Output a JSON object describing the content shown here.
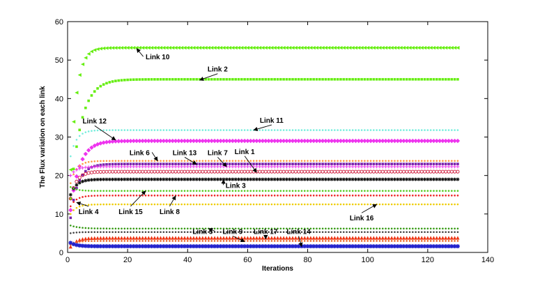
{
  "chart_data": {
    "type": "scatter",
    "xlabel": "Iterations",
    "ylabel": "The Flux variation on each link",
    "xlim": [
      0,
      140
    ],
    "ylim": [
      0,
      60
    ],
    "x_ticks": [
      0,
      20,
      40,
      60,
      80,
      100,
      120,
      140
    ],
    "y_ticks": [
      0,
      10,
      20,
      30,
      40,
      50,
      60
    ],
    "x_range": [
      1,
      130
    ],
    "grid": false,
    "series": [
      {
        "name": "Link 10",
        "start": 21.5,
        "final": 53.2,
        "tau": 2.0,
        "marker": "triangle-left",
        "color": "#66ee11"
      },
      {
        "name": "Link 2",
        "start": 14.0,
        "final": 45.0,
        "tau": 3.5,
        "marker": "square",
        "color": "#66ee11"
      },
      {
        "name": "Link 11",
        "start": 25.0,
        "final": 31.8,
        "tau": 2.0,
        "marker": "dot",
        "color": "#77eedd"
      },
      {
        "name": "Link 12",
        "start": 11.0,
        "final": 29.0,
        "tau": 3.0,
        "marker": "diamond",
        "color": "#ee33ee"
      },
      {
        "name": "Link 6",
        "start": 18.0,
        "final": 23.8,
        "tau": 2.0,
        "marker": "dot",
        "color": "#ff9944"
      },
      {
        "name": "Link 13",
        "start": 9.0,
        "final": 23.0,
        "tau": 2.5,
        "marker": "square",
        "color": "#7722aa"
      },
      {
        "name": "Link 7",
        "start": 20.0,
        "final": 22.3,
        "tau": 2.0,
        "marker": "plus",
        "color": "#ee33ee"
      },
      {
        "name": "Link 1",
        "start": 14.0,
        "final": 21.0,
        "tau": 2.0,
        "marker": "circle",
        "color": "#cc1133"
      },
      {
        "name": "Link 3",
        "start": 15.0,
        "final": 19.0,
        "tau": 2.0,
        "marker": "asterisk",
        "color": "#111111"
      },
      {
        "name": "Link 15",
        "start": 17.0,
        "final": 16.0,
        "tau": 2.0,
        "marker": "dot",
        "color": "#55cc22"
      },
      {
        "name": "Link 8",
        "start": 12.0,
        "final": 14.8,
        "tau": 2.0,
        "marker": "dot",
        "color": "#ee2222"
      },
      {
        "name": "Link 16",
        "start": 10.0,
        "final": 12.5,
        "tau": 2.0,
        "marker": "dot",
        "color": "#eecc00"
      },
      {
        "name": "Link 4",
        "start": 7.0,
        "final": 6.2,
        "tau": 3.0,
        "marker": "dot",
        "color": "#339911"
      },
      {
        "name": "Link 5",
        "start": 5.0,
        "final": 5.3,
        "tau": 2.0,
        "marker": "dot",
        "color": "#444444"
      },
      {
        "name": "Link 9",
        "start": 1.5,
        "final": 3.8,
        "tau": 2.0,
        "marker": "triangle-up",
        "color": "#ee3311"
      },
      {
        "name": "Link 17",
        "start": 2.0,
        "final": 3.0,
        "tau": 2.0,
        "marker": "dot",
        "color": "#ee6622"
      },
      {
        "name": "Link 14",
        "start": 2.5,
        "final": 1.6,
        "tau": 2.0,
        "marker": "star",
        "color": "#2222cc"
      }
    ],
    "annotations": [
      {
        "text": "Link 10",
        "label_at": [
          30,
          50.2
        ],
        "arrow_to": [
          23,
          53.0
        ]
      },
      {
        "text": "Link 2",
        "label_at": [
          50,
          47.0
        ],
        "arrow_to": [
          44,
          44.8
        ]
      },
      {
        "text": "Link 11",
        "label_at": [
          68,
          33.7
        ],
        "arrow_to": [
          62,
          31.8
        ]
      },
      {
        "text": "Link 12",
        "label_at": [
          9,
          33.5
        ],
        "arrow_to": [
          16,
          29.2
        ]
      },
      {
        "text": "Link 6",
        "label_at": [
          24,
          25.3
        ],
        "arrow_to": [
          30,
          23.8
        ]
      },
      {
        "text": "Link 13",
        "label_at": [
          39,
          25.3
        ],
        "arrow_to": [
          43,
          22.9
        ]
      },
      {
        "text": "Link 7",
        "label_at": [
          50,
          25.3
        ],
        "arrow_to": [
          53,
          22.3
        ]
      },
      {
        "text": "Link 1",
        "label_at": [
          59,
          25.6
        ],
        "arrow_to": [
          63,
          20.8
        ]
      },
      {
        "text": "Link 3",
        "label_at": [
          56,
          16.8
        ],
        "arrow_to": [
          52,
          18.9
        ]
      },
      {
        "text": "Link 15",
        "label_at": [
          21,
          10.0
        ],
        "arrow_to": [
          26,
          16.0
        ]
      },
      {
        "text": "Link 8",
        "label_at": [
          34,
          10.0
        ],
        "arrow_to": [
          36,
          14.7
        ]
      },
      {
        "text": "Link 5",
        "label_at": [
          45,
          4.8
        ],
        "arrow_to": [
          47,
          6.2
        ]
      },
      {
        "text": "Link 9",
        "label_at": [
          55,
          4.8
        ],
        "arrow_to": [
          59,
          2.8
        ]
      },
      {
        "text": "Link 17",
        "label_at": [
          66,
          4.8
        ],
        "arrow_to": [
          66,
          3.5
        ]
      },
      {
        "text": "Link 14",
        "label_at": [
          77,
          4.8
        ],
        "arrow_to": [
          78,
          1.5
        ]
      },
      {
        "text": "Link 16",
        "label_at": [
          98,
          8.3
        ],
        "arrow_to": [
          103,
          12.5
        ]
      },
      {
        "text": "Link 4",
        "label_at": [
          7,
          10.0
        ],
        "arrow_to": [
          3,
          13.0
        ]
      }
    ]
  }
}
